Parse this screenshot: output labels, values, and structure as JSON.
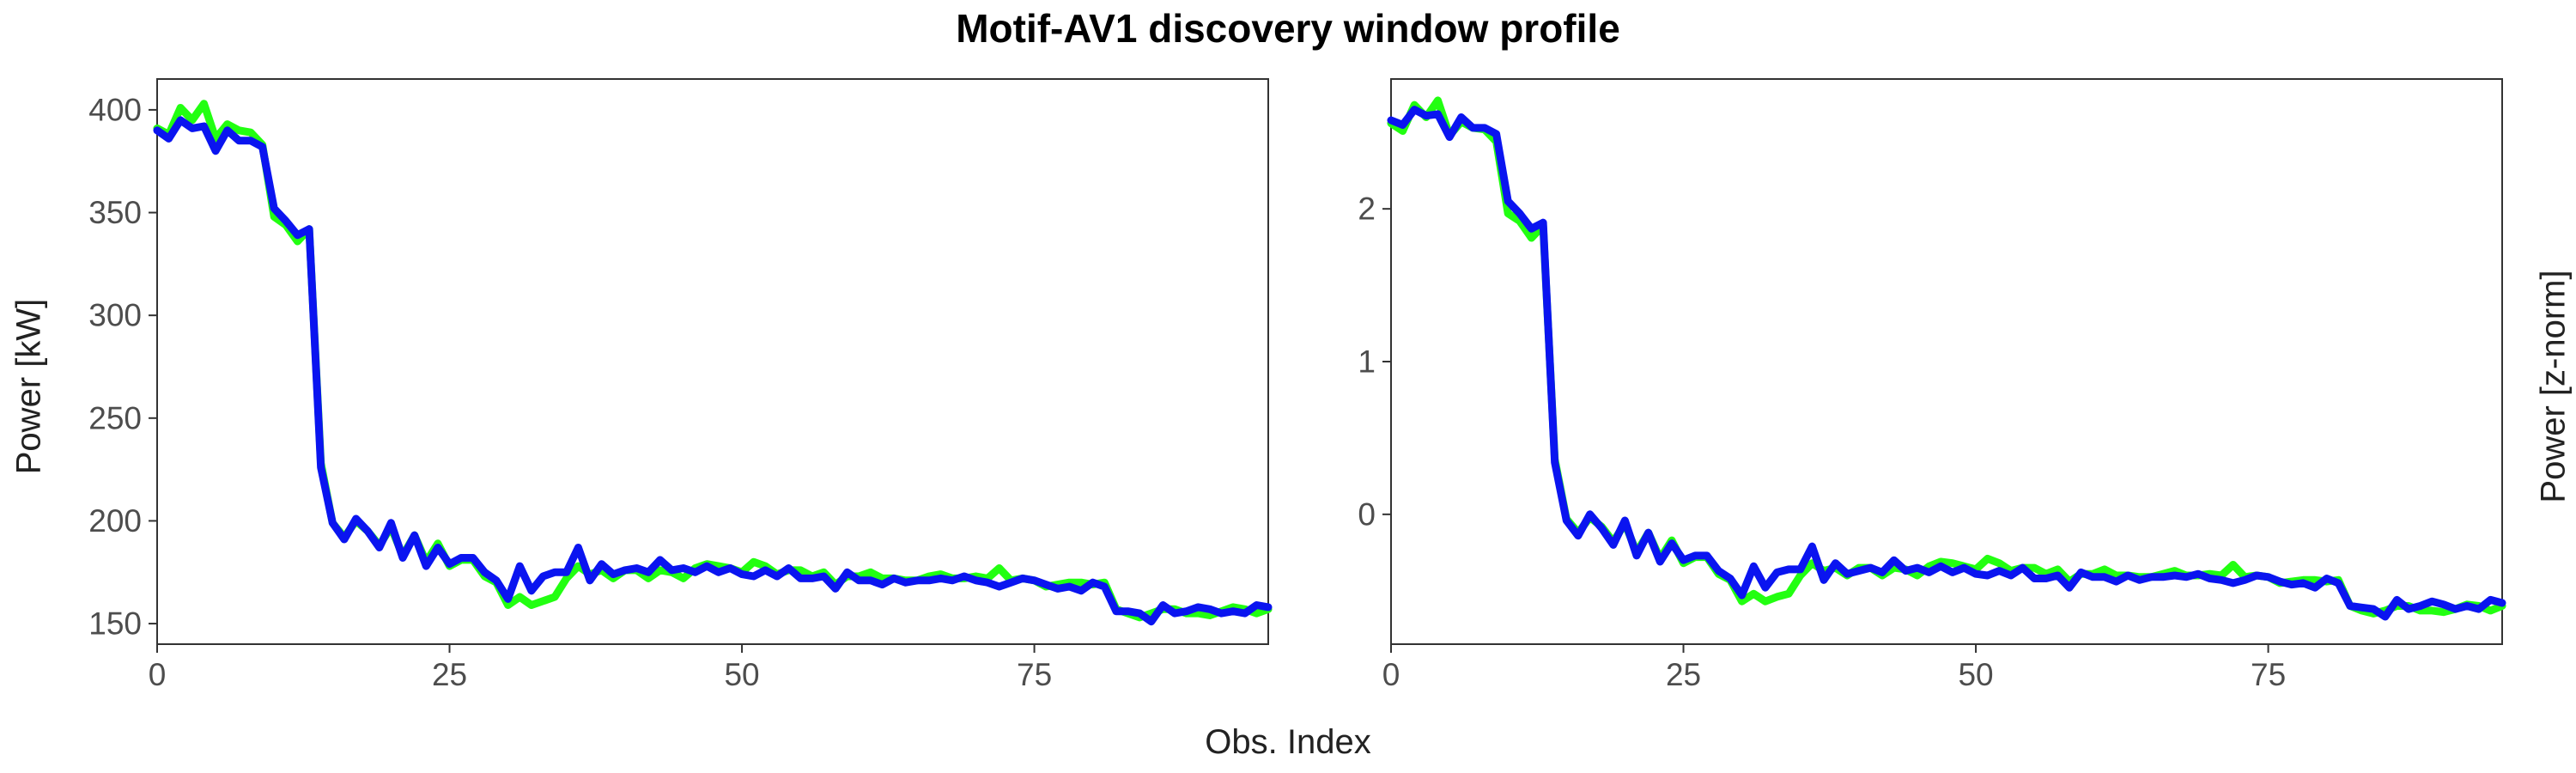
{
  "title": "Motif-AV1 discovery window profile",
  "xlabel": "Obs. Index",
  "ylabel_left": "Power [kW]",
  "ylabel_right": "Power [z-norm]",
  "colors": {
    "series_a": "#22ff11",
    "series_b": "#0a14f0",
    "frame": "#333333",
    "tick_text": "#4d4d4d"
  },
  "chart_data": [
    {
      "type": "line",
      "panel": "left",
      "xlim": [
        0,
        95
      ],
      "ylim": [
        140,
        415
      ],
      "xticks": [
        0,
        25,
        50,
        75
      ],
      "yticks": [
        150,
        200,
        250,
        300,
        350,
        400
      ],
      "x_start": 0,
      "series": [
        {
          "color": "#22ff11",
          "values": [
            391,
            388,
            401,
            395,
            403,
            386,
            393,
            390,
            389,
            383,
            348,
            344,
            336,
            342,
            228,
            199,
            192,
            200,
            195,
            188,
            197,
            183,
            193,
            180,
            189,
            178,
            181,
            181,
            173,
            170,
            159,
            163,
            159,
            161,
            163,
            172,
            178,
            174,
            176,
            172,
            176,
            176,
            172,
            176,
            175,
            172,
            177,
            179,
            178,
            177,
            175,
            180,
            178,
            174,
            176,
            176,
            173,
            175,
            169,
            173,
            173,
            175,
            172,
            172,
            171,
            171,
            173,
            174,
            172,
            172,
            173,
            172,
            177,
            171,
            172,
            171,
            168,
            169,
            170,
            170,
            169,
            170,
            157,
            155,
            153,
            155,
            157,
            157,
            155,
            155,
            154,
            156,
            158,
            157,
            155,
            157
          ]
        },
        {
          "color": "#0a14f0",
          "values": [
            390,
            386,
            395,
            391,
            392,
            380,
            390,
            385,
            385,
            382,
            352,
            346,
            339,
            342,
            226,
            199,
            191,
            201,
            195,
            187,
            199,
            182,
            193,
            178,
            187,
            179,
            182,
            182,
            175,
            171,
            162,
            178,
            166,
            173,
            175,
            175,
            187,
            171,
            179,
            174,
            176,
            177,
            175,
            181,
            176,
            177,
            175,
            178,
            175,
            177,
            174,
            173,
            176,
            173,
            177,
            172,
            172,
            173,
            167,
            175,
            171,
            171,
            169,
            172,
            170,
            171,
            171,
            172,
            171,
            173,
            171,
            170,
            168,
            170,
            172,
            171,
            169,
            167,
            168,
            166,
            170,
            168,
            156,
            156,
            155,
            151,
            159,
            155,
            156,
            158,
            157,
            155,
            156,
            155,
            159,
            158
          ]
        }
      ]
    },
    {
      "type": "line",
      "panel": "right",
      "xlim": [
        0,
        95
      ],
      "ylim": [
        -0.85,
        2.85
      ],
      "xticks": [
        0,
        25,
        50,
        75
      ],
      "yticks": [
        0,
        1,
        2
      ],
      "x_start": 0,
      "series": [
        {
          "color": "#22ff11",
          "values": [
            2.56,
            2.51,
            2.68,
            2.6,
            2.71,
            2.48,
            2.57,
            2.53,
            2.52,
            2.44,
            1.97,
            1.92,
            1.81,
            1.89,
            0.36,
            -0.03,
            -0.12,
            -0.02,
            -0.08,
            -0.18,
            -0.06,
            -0.25,
            -0.12,
            -0.29,
            -0.17,
            -0.32,
            -0.28,
            -0.28,
            -0.39,
            -0.43,
            -0.57,
            -0.52,
            -0.57,
            -0.54,
            -0.52,
            -0.4,
            -0.32,
            -0.37,
            -0.35,
            -0.4,
            -0.35,
            -0.35,
            -0.4,
            -0.35,
            -0.36,
            -0.4,
            -0.34,
            -0.31,
            -0.32,
            -0.34,
            -0.36,
            -0.29,
            -0.32,
            -0.37,
            -0.35,
            -0.35,
            -0.39,
            -0.36,
            -0.44,
            -0.39,
            -0.39,
            -0.36,
            -0.4,
            -0.4,
            -0.41,
            -0.41,
            -0.39,
            -0.37,
            -0.4,
            -0.4,
            -0.39,
            -0.4,
            -0.33,
            -0.41,
            -0.4,
            -0.41,
            -0.45,
            -0.44,
            -0.43,
            -0.43,
            -0.44,
            -0.43,
            -0.6,
            -0.63,
            -0.65,
            -0.63,
            -0.6,
            -0.6,
            -0.63,
            -0.63,
            -0.64,
            -0.62,
            -0.59,
            -0.6,
            -0.63,
            -0.6
          ]
        },
        {
          "color": "#0a14f0",
          "values": [
            2.58,
            2.55,
            2.65,
            2.61,
            2.62,
            2.47,
            2.6,
            2.53,
            2.53,
            2.49,
            2.05,
            1.97,
            1.87,
            1.91,
            0.34,
            -0.04,
            -0.14,
            0.0,
            -0.09,
            -0.2,
            -0.04,
            -0.27,
            -0.12,
            -0.31,
            -0.19,
            -0.3,
            -0.27,
            -0.27,
            -0.37,
            -0.42,
            -0.53,
            -0.34,
            -0.48,
            -0.38,
            -0.36,
            -0.36,
            -0.21,
            -0.43,
            -0.32,
            -0.39,
            -0.37,
            -0.35,
            -0.38,
            -0.3,
            -0.37,
            -0.35,
            -0.38,
            -0.34,
            -0.38,
            -0.35,
            -0.39,
            -0.4,
            -0.37,
            -0.4,
            -0.35,
            -0.42,
            -0.42,
            -0.4,
            -0.48,
            -0.38,
            -0.41,
            -0.41,
            -0.44,
            -0.4,
            -0.43,
            -0.41,
            -0.41,
            -0.4,
            -0.41,
            -0.39,
            -0.42,
            -0.43,
            -0.45,
            -0.43,
            -0.4,
            -0.41,
            -0.44,
            -0.46,
            -0.45,
            -0.48,
            -0.42,
            -0.45,
            -0.6,
            -0.61,
            -0.62,
            -0.67,
            -0.56,
            -0.62,
            -0.6,
            -0.57,
            -0.59,
            -0.62,
            -0.6,
            -0.62,
            -0.56,
            -0.58
          ]
        }
      ]
    }
  ]
}
